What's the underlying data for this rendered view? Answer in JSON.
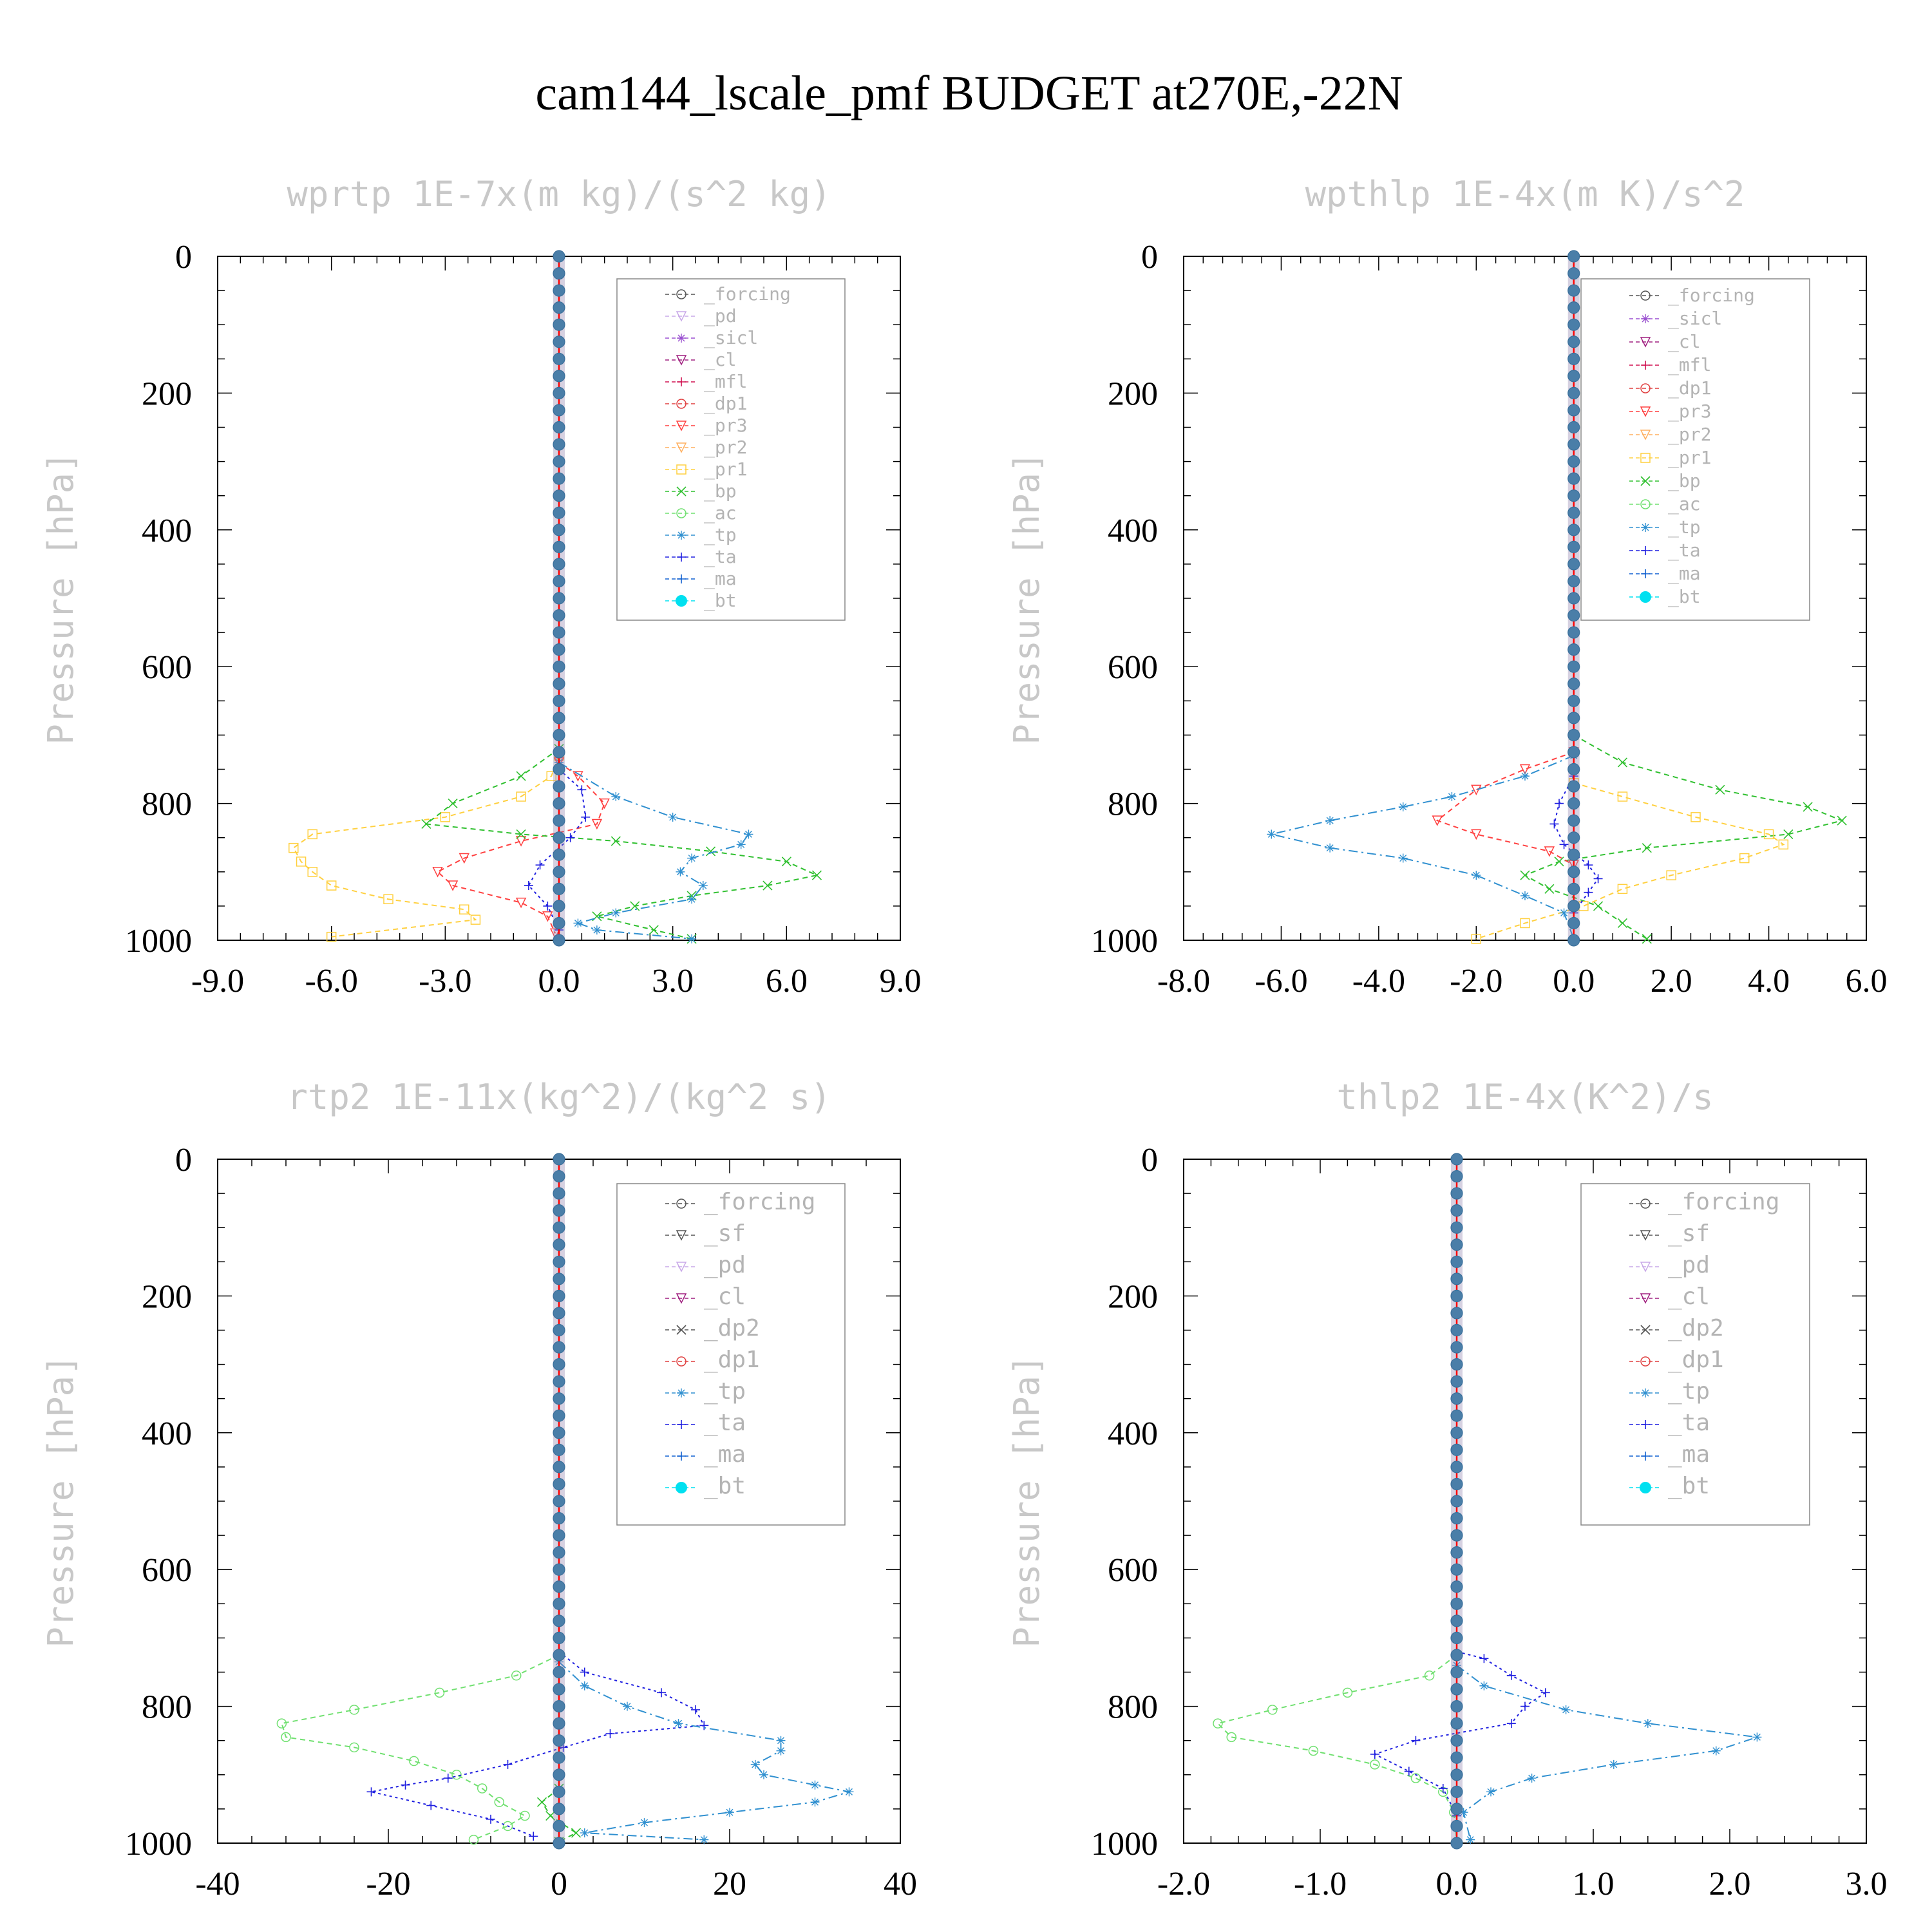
{
  "figure_title": "cam144_lscale_pmf  BUDGET at270E,-22N",
  "colors": {
    "forcing": "#555555",
    "pd": "#c8a8e8",
    "sicl": "#9a4fd0",
    "cl": "#a02080",
    "mfl": "#d01050",
    "dp1": "#e04040",
    "pr3": "#ff4040",
    "pr2": "#ffb060",
    "pr1": "#ffd040",
    "bp": "#30c030",
    "ac": "#70e070",
    "tp": "#3090d0",
    "ta": "#2020e0",
    "ma": "#1060d0",
    "bt": "#00e0f0",
    "zero_line": "#ff0000"
  },
  "chart_data": [
    {
      "type": "line",
      "title": "wprtp  1E-7x(m kg)/(s^2 kg)",
      "ylabel": "Pressure [hPa]",
      "xlim": [
        -9,
        9
      ],
      "ylim": [
        1000,
        0
      ],
      "xticks": [
        "-9.0",
        "-6.0",
        "-3.0",
        "0.0",
        "3.0",
        "6.0",
        "9.0"
      ],
      "yticks": [
        "0",
        "200",
        "400",
        "600",
        "800",
        "1000"
      ],
      "legend": [
        "_forcing",
        "_pd",
        "_sicl",
        "_cl",
        "_mfl",
        "_dp1",
        "_pr3",
        "_pr2",
        "_pr1",
        "_bp",
        "_ac",
        "_tp",
        "_ta",
        "_ma",
        "_bt"
      ],
      "series": [
        {
          "name": "_pr1",
          "color_key": "pr1",
          "marker": "square",
          "dash": "8,6",
          "points": [
            [
              0,
              730
            ],
            [
              -0.2,
              760
            ],
            [
              -1.0,
              790
            ],
            [
              -3.0,
              820
            ],
            [
              -6.5,
              845
            ],
            [
              -7.0,
              865
            ],
            [
              -6.8,
              885
            ],
            [
              -6.5,
              900
            ],
            [
              -6.0,
              920
            ],
            [
              -4.5,
              940
            ],
            [
              -2.5,
              955
            ],
            [
              -2.2,
              970
            ],
            [
              -6.0,
              995
            ]
          ]
        },
        {
          "name": "_pr3",
          "color_key": "pr3",
          "marker": "tri-down",
          "dash": "8,6",
          "points": [
            [
              0,
              740
            ],
            [
              0.5,
              760
            ],
            [
              1.2,
              800
            ],
            [
              1.0,
              830
            ],
            [
              -1.0,
              855
            ],
            [
              -2.5,
              880
            ],
            [
              -3.2,
              900
            ],
            [
              -2.8,
              920
            ],
            [
              -1.0,
              945
            ],
            [
              -0.3,
              965
            ],
            [
              -0.1,
              990
            ]
          ]
        },
        {
          "name": "_bp",
          "color_key": "bp",
          "marker": "x",
          "dash": "8,6",
          "points": [
            [
              0,
              720
            ],
            [
              -1.0,
              760
            ],
            [
              -2.8,
              800
            ],
            [
              -3.5,
              830
            ],
            [
              -1.0,
              845
            ],
            [
              1.5,
              855
            ],
            [
              4.0,
              870
            ],
            [
              6.0,
              885
            ],
            [
              6.8,
              905
            ],
            [
              5.5,
              920
            ],
            [
              3.5,
              935
            ],
            [
              2.0,
              950
            ],
            [
              1.0,
              965
            ],
            [
              2.5,
              985
            ],
            [
              3.5,
              998
            ]
          ]
        },
        {
          "name": "_tp",
          "color_key": "tp",
          "marker": "asterisk",
          "dash": "14,6,3,6",
          "points": [
            [
              0,
              740
            ],
            [
              1.5,
              790
            ],
            [
              3.0,
              820
            ],
            [
              5.0,
              845
            ],
            [
              4.8,
              860
            ],
            [
              3.5,
              880
            ],
            [
              3.2,
              900
            ],
            [
              3.8,
              920
            ],
            [
              3.5,
              940
            ],
            [
              1.5,
              960
            ],
            [
              0.5,
              975
            ],
            [
              1.0,
              985
            ],
            [
              3.5,
              998
            ]
          ]
        },
        {
          "name": "_ta",
          "color_key": "ta",
          "marker": "plus",
          "dash": "4,5",
          "points": [
            [
              0,
              750
            ],
            [
              0.6,
              780
            ],
            [
              0.7,
              820
            ],
            [
              0.3,
              850
            ],
            [
              -0.5,
              890
            ],
            [
              -0.8,
              920
            ],
            [
              -0.3,
              950
            ],
            [
              0,
              985
            ]
          ]
        },
        {
          "name": "_bt",
          "color_key": "bt",
          "marker": "dot",
          "dash": "",
          "points": [
            [
              0,
              0
            ],
            [
              0,
              1000
            ]
          ]
        }
      ]
    },
    {
      "type": "line",
      "title": "wpthlp  1E-4x(m K)/s^2",
      "ylabel": "Pressure [hPa]",
      "xlim": [
        -8,
        6
      ],
      "ylim": [
        1000,
        0
      ],
      "xticks": [
        "-8.0",
        "-6.0",
        "-4.0",
        "-2.0",
        "0.0",
        "2.0",
        "4.0",
        "6.0"
      ],
      "yticks": [
        "0",
        "200",
        "400",
        "600",
        "800",
        "1000"
      ],
      "legend": [
        "_forcing",
        "_sicl",
        "_cl",
        "_mfl",
        "_dp1",
        "_pr3",
        "_pr2",
        "_pr1",
        "_bp",
        "_ac",
        "_tp",
        "_ta",
        "_ma",
        "_bt"
      ],
      "series": [
        {
          "name": "_bp",
          "color_key": "bp",
          "marker": "x",
          "dash": "8,6",
          "points": [
            [
              0,
              700
            ],
            [
              1.0,
              740
            ],
            [
              3.0,
              780
            ],
            [
              4.8,
              805
            ],
            [
              5.5,
              825
            ],
            [
              4.4,
              845
            ],
            [
              1.5,
              865
            ],
            [
              -0.3,
              885
            ],
            [
              -1.0,
              905
            ],
            [
              -0.5,
              925
            ],
            [
              0.5,
              950
            ],
            [
              1.0,
              975
            ],
            [
              1.5,
              998
            ]
          ]
        },
        {
          "name": "_pr1",
          "color_key": "pr1",
          "marker": "square",
          "dash": "8,6",
          "points": [
            [
              0,
              770
            ],
            [
              1.0,
              790
            ],
            [
              2.5,
              820
            ],
            [
              4.0,
              845
            ],
            [
              4.3,
              860
            ],
            [
              3.5,
              880
            ],
            [
              2.0,
              905
            ],
            [
              1.0,
              925
            ],
            [
              0.2,
              950
            ],
            [
              -1.0,
              975
            ],
            [
              -2.0,
              998
            ]
          ]
        },
        {
          "name": "_pr3",
          "color_key": "pr3",
          "marker": "tri-down",
          "dash": "8,6",
          "points": [
            [
              0,
              725
            ],
            [
              -1.0,
              750
            ],
            [
              -2.0,
              780
            ],
            [
              -2.8,
              825
            ],
            [
              -2.0,
              845
            ],
            [
              -0.5,
              870
            ],
            [
              0,
              890
            ]
          ]
        },
        {
          "name": "_tp",
          "color_key": "tp",
          "marker": "asterisk",
          "dash": "14,6,3,6",
          "points": [
            [
              0,
              730
            ],
            [
              -1.0,
              760
            ],
            [
              -2.5,
              790
            ],
            [
              -3.5,
              805
            ],
            [
              -5.0,
              825
            ],
            [
              -6.2,
              845
            ],
            [
              -5.0,
              865
            ],
            [
              -3.5,
              880
            ],
            [
              -2.0,
              905
            ],
            [
              -1.0,
              935
            ],
            [
              -0.2,
              960
            ],
            [
              0,
              998
            ]
          ]
        },
        {
          "name": "_ta",
          "color_key": "ta",
          "marker": "plus",
          "dash": "4,5",
          "points": [
            [
              0,
              760
            ],
            [
              -0.3,
              800
            ],
            [
              -0.4,
              830
            ],
            [
              -0.2,
              860
            ],
            [
              0.3,
              890
            ],
            [
              0.5,
              910
            ],
            [
              0.3,
              930
            ],
            [
              0,
              960
            ]
          ]
        },
        {
          "name": "_bt",
          "color_key": "bt",
          "marker": "dot",
          "dash": "",
          "points": [
            [
              0,
              0
            ],
            [
              0,
              1000
            ]
          ]
        }
      ]
    },
    {
      "type": "line",
      "title": "rtp2  1E-11x(kg^2)/(kg^2 s)",
      "ylabel": "Pressure [hPa]",
      "xlim": [
        -40,
        40
      ],
      "ylim": [
        1000,
        0
      ],
      "xticks": [
        "-40",
        "-20",
        "0",
        "20",
        "40"
      ],
      "yticks": [
        "0",
        "200",
        "400",
        "600",
        "800",
        "1000"
      ],
      "legend": [
        "_forcing",
        "_sf",
        "_pd",
        "_cl",
        "_dp2",
        "_dp1",
        "_tp",
        "_ta",
        "_ma",
        "_bt"
      ],
      "series": [
        {
          "name": "_dp1",
          "color_key": "ac",
          "marker": "circle",
          "dash": "8,6",
          "points": [
            [
              0,
              725
            ],
            [
              -5.0,
              755
            ],
            [
              -14.0,
              780
            ],
            [
              -24.0,
              805
            ],
            [
              -32.5,
              825
            ],
            [
              -32.0,
              845
            ],
            [
              -24.0,
              860
            ],
            [
              -17.0,
              880
            ],
            [
              -12.0,
              900
            ],
            [
              -9.0,
              920
            ],
            [
              -7.0,
              940
            ],
            [
              -4.0,
              960
            ],
            [
              -6.0,
              975
            ],
            [
              -10.0,
              995
            ]
          ]
        },
        {
          "name": "_ta",
          "color_key": "ta",
          "marker": "plus",
          "dash": "4,5",
          "points": [
            [
              0,
              720
            ],
            [
              3.0,
              750
            ],
            [
              12.0,
              780
            ],
            [
              16.0,
              805
            ],
            [
              17.0,
              828
            ],
            [
              6.0,
              840
            ],
            [
              0.5,
              860
            ],
            [
              -6.0,
              885
            ],
            [
              -13.0,
              905
            ],
            [
              -18.0,
              915
            ],
            [
              -22.0,
              925
            ],
            [
              -15.0,
              945
            ],
            [
              -8.0,
              965
            ],
            [
              -3.0,
              990
            ]
          ]
        },
        {
          "name": "_tp",
          "color_key": "tp",
          "marker": "asterisk",
          "dash": "14,6,3,6",
          "points": [
            [
              0,
              735
            ],
            [
              3.0,
              770
            ],
            [
              8.0,
              800
            ],
            [
              14.0,
              825
            ],
            [
              26.0,
              850
            ],
            [
              26.0,
              865
            ],
            [
              23.0,
              885
            ],
            [
              24.0,
              900
            ],
            [
              30.0,
              915
            ],
            [
              34.0,
              925
            ],
            [
              30.0,
              940
            ],
            [
              20.0,
              955
            ],
            [
              10.0,
              970
            ],
            [
              3.0,
              985
            ],
            [
              17.0,
              995
            ]
          ]
        },
        {
          "name": "_dp2",
          "color_key": "bp",
          "marker": "x",
          "dash": "8,6",
          "points": [
            [
              0,
              920
            ],
            [
              -2.0,
              940
            ],
            [
              -1.0,
              960
            ],
            [
              2.0,
              985
            ],
            [
              0,
              998
            ]
          ]
        },
        {
          "name": "_bt",
          "color_key": "bt",
          "marker": "dot",
          "dash": "",
          "points": [
            [
              0,
              0
            ],
            [
              0,
              1000
            ]
          ]
        }
      ]
    },
    {
      "type": "line",
      "title": "thlp2  1E-4x(K^2)/s",
      "ylabel": "Pressure [hPa]",
      "xlim": [
        -2,
        3
      ],
      "ylim": [
        1000,
        0
      ],
      "xticks": [
        "-2.0",
        "-1.0",
        "0.0",
        "1.0",
        "2.0",
        "3.0"
      ],
      "yticks": [
        "0",
        "200",
        "400",
        "600",
        "800",
        "1000"
      ],
      "legend": [
        "_forcing",
        "_sf",
        "_pd",
        "_cl",
        "_dp2",
        "_dp1",
        "_tp",
        "_ta",
        "_ma",
        "_bt"
      ],
      "series": [
        {
          "name": "_dp1",
          "color_key": "ac",
          "marker": "circle",
          "dash": "8,6",
          "points": [
            [
              0,
              725
            ],
            [
              -0.2,
              755
            ],
            [
              -0.8,
              780
            ],
            [
              -1.35,
              805
            ],
            [
              -1.75,
              825
            ],
            [
              -1.65,
              845
            ],
            [
              -1.05,
              865
            ],
            [
              -0.6,
              885
            ],
            [
              -0.3,
              905
            ],
            [
              -0.1,
              925
            ],
            [
              -0.02,
              955
            ],
            [
              0,
              998
            ]
          ]
        },
        {
          "name": "_ta",
          "color_key": "ta",
          "marker": "plus",
          "dash": "4,5",
          "points": [
            [
              0,
              720
            ],
            [
              0.2,
              730
            ],
            [
              0.4,
              755
            ],
            [
              0.65,
              780
            ],
            [
              0.5,
              800
            ],
            [
              0.4,
              825
            ],
            [
              -0.3,
              850
            ],
            [
              -0.6,
              870
            ],
            [
              -0.35,
              895
            ],
            [
              -0.1,
              920
            ],
            [
              0,
              960
            ]
          ]
        },
        {
          "name": "_tp",
          "color_key": "tp",
          "marker": "asterisk",
          "dash": "14,6,3,6",
          "points": [
            [
              0,
              740
            ],
            [
              0.2,
              770
            ],
            [
              0.8,
              805
            ],
            [
              1.4,
              825
            ],
            [
              2.2,
              845
            ],
            [
              1.9,
              865
            ],
            [
              1.15,
              885
            ],
            [
              0.55,
              905
            ],
            [
              0.25,
              925
            ],
            [
              0.05,
              955
            ],
            [
              0.1,
              995
            ]
          ]
        },
        {
          "name": "_bt",
          "color_key": "bt",
          "marker": "dot",
          "dash": "",
          "points": [
            [
              0,
              0
            ],
            [
              0,
              1000
            ]
          ]
        }
      ]
    }
  ]
}
